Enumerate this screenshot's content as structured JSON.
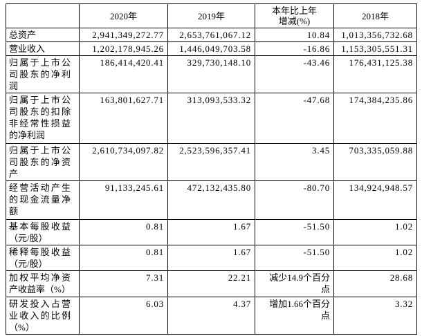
{
  "table": {
    "column_headers": [
      "",
      "2020年",
      "2019年",
      "本年比上年增减(%)",
      "2018年"
    ],
    "rows": [
      {
        "label": "总资产",
        "y2020": "2,941,349,272.77",
        "y2019": "2,653,761,067.12",
        "change": "10.84",
        "y2018": "1,013,356,732.68"
      },
      {
        "label": "营业收入",
        "y2020": "1,202,178,945.26",
        "y2019": "1,446,049,703.58",
        "change": "-16.86",
        "y2018": "1,153,305,551.31"
      },
      {
        "label": "归属于上市公司股东的净利润",
        "y2020": "186,414,420.41",
        "y2019": "329,730,148.10",
        "change": "-43.46",
        "y2018": "176,431,125.38"
      },
      {
        "label": "归属于上市公司股东的扣除非经常性损益的净利润",
        "y2020": "163,801,627.71",
        "y2019": "313,093,533.32",
        "change": "-47.68",
        "y2018": "174,384,235.86"
      },
      {
        "label": "归属于上市公司股东的净资产",
        "y2020": "2,610,734,097.82",
        "y2019": "2,523,596,357.41",
        "change": "3.45",
        "y2018": "703,335,059.88"
      },
      {
        "label": "经营活动产生的现金流量净额",
        "y2020": "91,133,245.61",
        "y2019": "472,132,435.80",
        "change": "-80.70",
        "y2018": "134,924,948.57"
      },
      {
        "label": "基本每股收益（元/股）",
        "y2020": "0.81",
        "y2019": "1.67",
        "change": "-51.50",
        "y2018": "1.02"
      },
      {
        "label": "稀释每股收益（元/股）",
        "y2020": "0.81",
        "y2019": "1.67",
        "change": "-51.50",
        "y2018": "1.02"
      },
      {
        "label": "加权平均净资产收益率（%）",
        "y2020": "7.31",
        "y2019": "22.21",
        "change": "减少14.9个百分点",
        "y2018": "28.68"
      },
      {
        "label": "研发投入占营业收入的比例（%）",
        "y2020": "6.03",
        "y2019": "4.37",
        "change": "增加1.66个百分点",
        "y2018": "3.32"
      }
    ],
    "colors": {
      "text": "#000000",
      "border": "#000000",
      "background": "#ffffff"
    }
  }
}
